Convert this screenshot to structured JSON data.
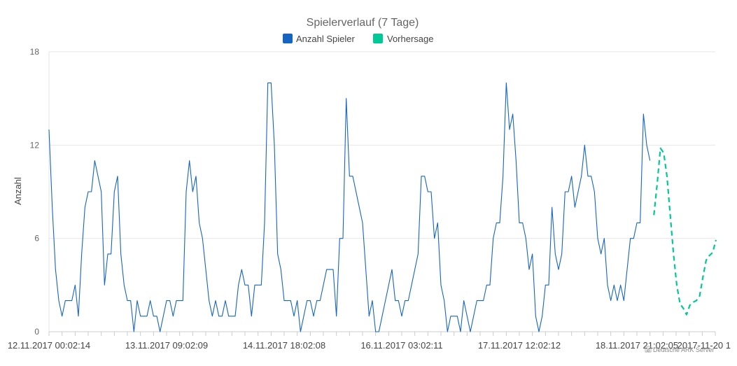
{
  "chart_data": {
    "type": "line",
    "title": "Spielerverlauf (7 Tage)",
    "ylabel": "Anzahl",
    "xlabel": "",
    "ylim": [
      0,
      18
    ],
    "yticks": [
      0,
      6,
      12,
      18
    ],
    "xtick_labels": [
      "12.11.2017 00:02:14",
      "13.11.2017 09:02:09",
      "14.11.2017 18:02:08",
      "16.11.2017 03:02:11",
      "17.11.2017 12:02:12",
      "18.11.2017 21:02:05",
      "2017-11-20 1"
    ],
    "grid": true,
    "legend_position": "top-center",
    "colors": {
      "actual": "#1565c0",
      "forecast": "#00c896"
    },
    "series": [
      {
        "name": "Anzahl Spieler",
        "style": "solid",
        "values": [
          13,
          8,
          4,
          2,
          1,
          2,
          2,
          2,
          3,
          1,
          5,
          8,
          9,
          9,
          11,
          10,
          9,
          3,
          5,
          5,
          9,
          10,
          5,
          3,
          2,
          2,
          0,
          2,
          1,
          1,
          1,
          2,
          1,
          1,
          0,
          1,
          2,
          2,
          1,
          2,
          2,
          2,
          9,
          11,
          9,
          10,
          7,
          6,
          4,
          2,
          1,
          2,
          1,
          1,
          2,
          1,
          1,
          1,
          3,
          4,
          3,
          3,
          1,
          3,
          3,
          3,
          7,
          16,
          16,
          12,
          5,
          4,
          2,
          2,
          2,
          1,
          2,
          0,
          1,
          2,
          2,
          1,
          2,
          2,
          3,
          4,
          4,
          4,
          1,
          6,
          6,
          15,
          10,
          10,
          9,
          8,
          7,
          4,
          1,
          2,
          0,
          0,
          1,
          2,
          3,
          4,
          2,
          2,
          1,
          2,
          2,
          3,
          4,
          5,
          10,
          10,
          9,
          9,
          6,
          7,
          3,
          2,
          0,
          1,
          1,
          1,
          0,
          2,
          1,
          0,
          1,
          2,
          2,
          2,
          3,
          3,
          6,
          7,
          7,
          10,
          16,
          13,
          14,
          11,
          7,
          7,
          6,
          4,
          5,
          1,
          0,
          1,
          3,
          3,
          8,
          5,
          4,
          5,
          9,
          9,
          10,
          8,
          9,
          10,
          12,
          10,
          10,
          9,
          6,
          5,
          6,
          3,
          2,
          3,
          2,
          3,
          2,
          4,
          6,
          6,
          7,
          7,
          14,
          12,
          11
        ]
      },
      {
        "name": "Vorhersage",
        "style": "dashed",
        "values": [
          7.5,
          9.5,
          11.8,
          11.5,
          10,
          7.5,
          5,
          3,
          1.8,
          1.5,
          1.1,
          1.7,
          1.9,
          2,
          2.3,
          3.5,
          4.6,
          4.9,
          5.1,
          5.9
        ]
      }
    ]
  },
  "credit": "Deutsche ARK Server"
}
